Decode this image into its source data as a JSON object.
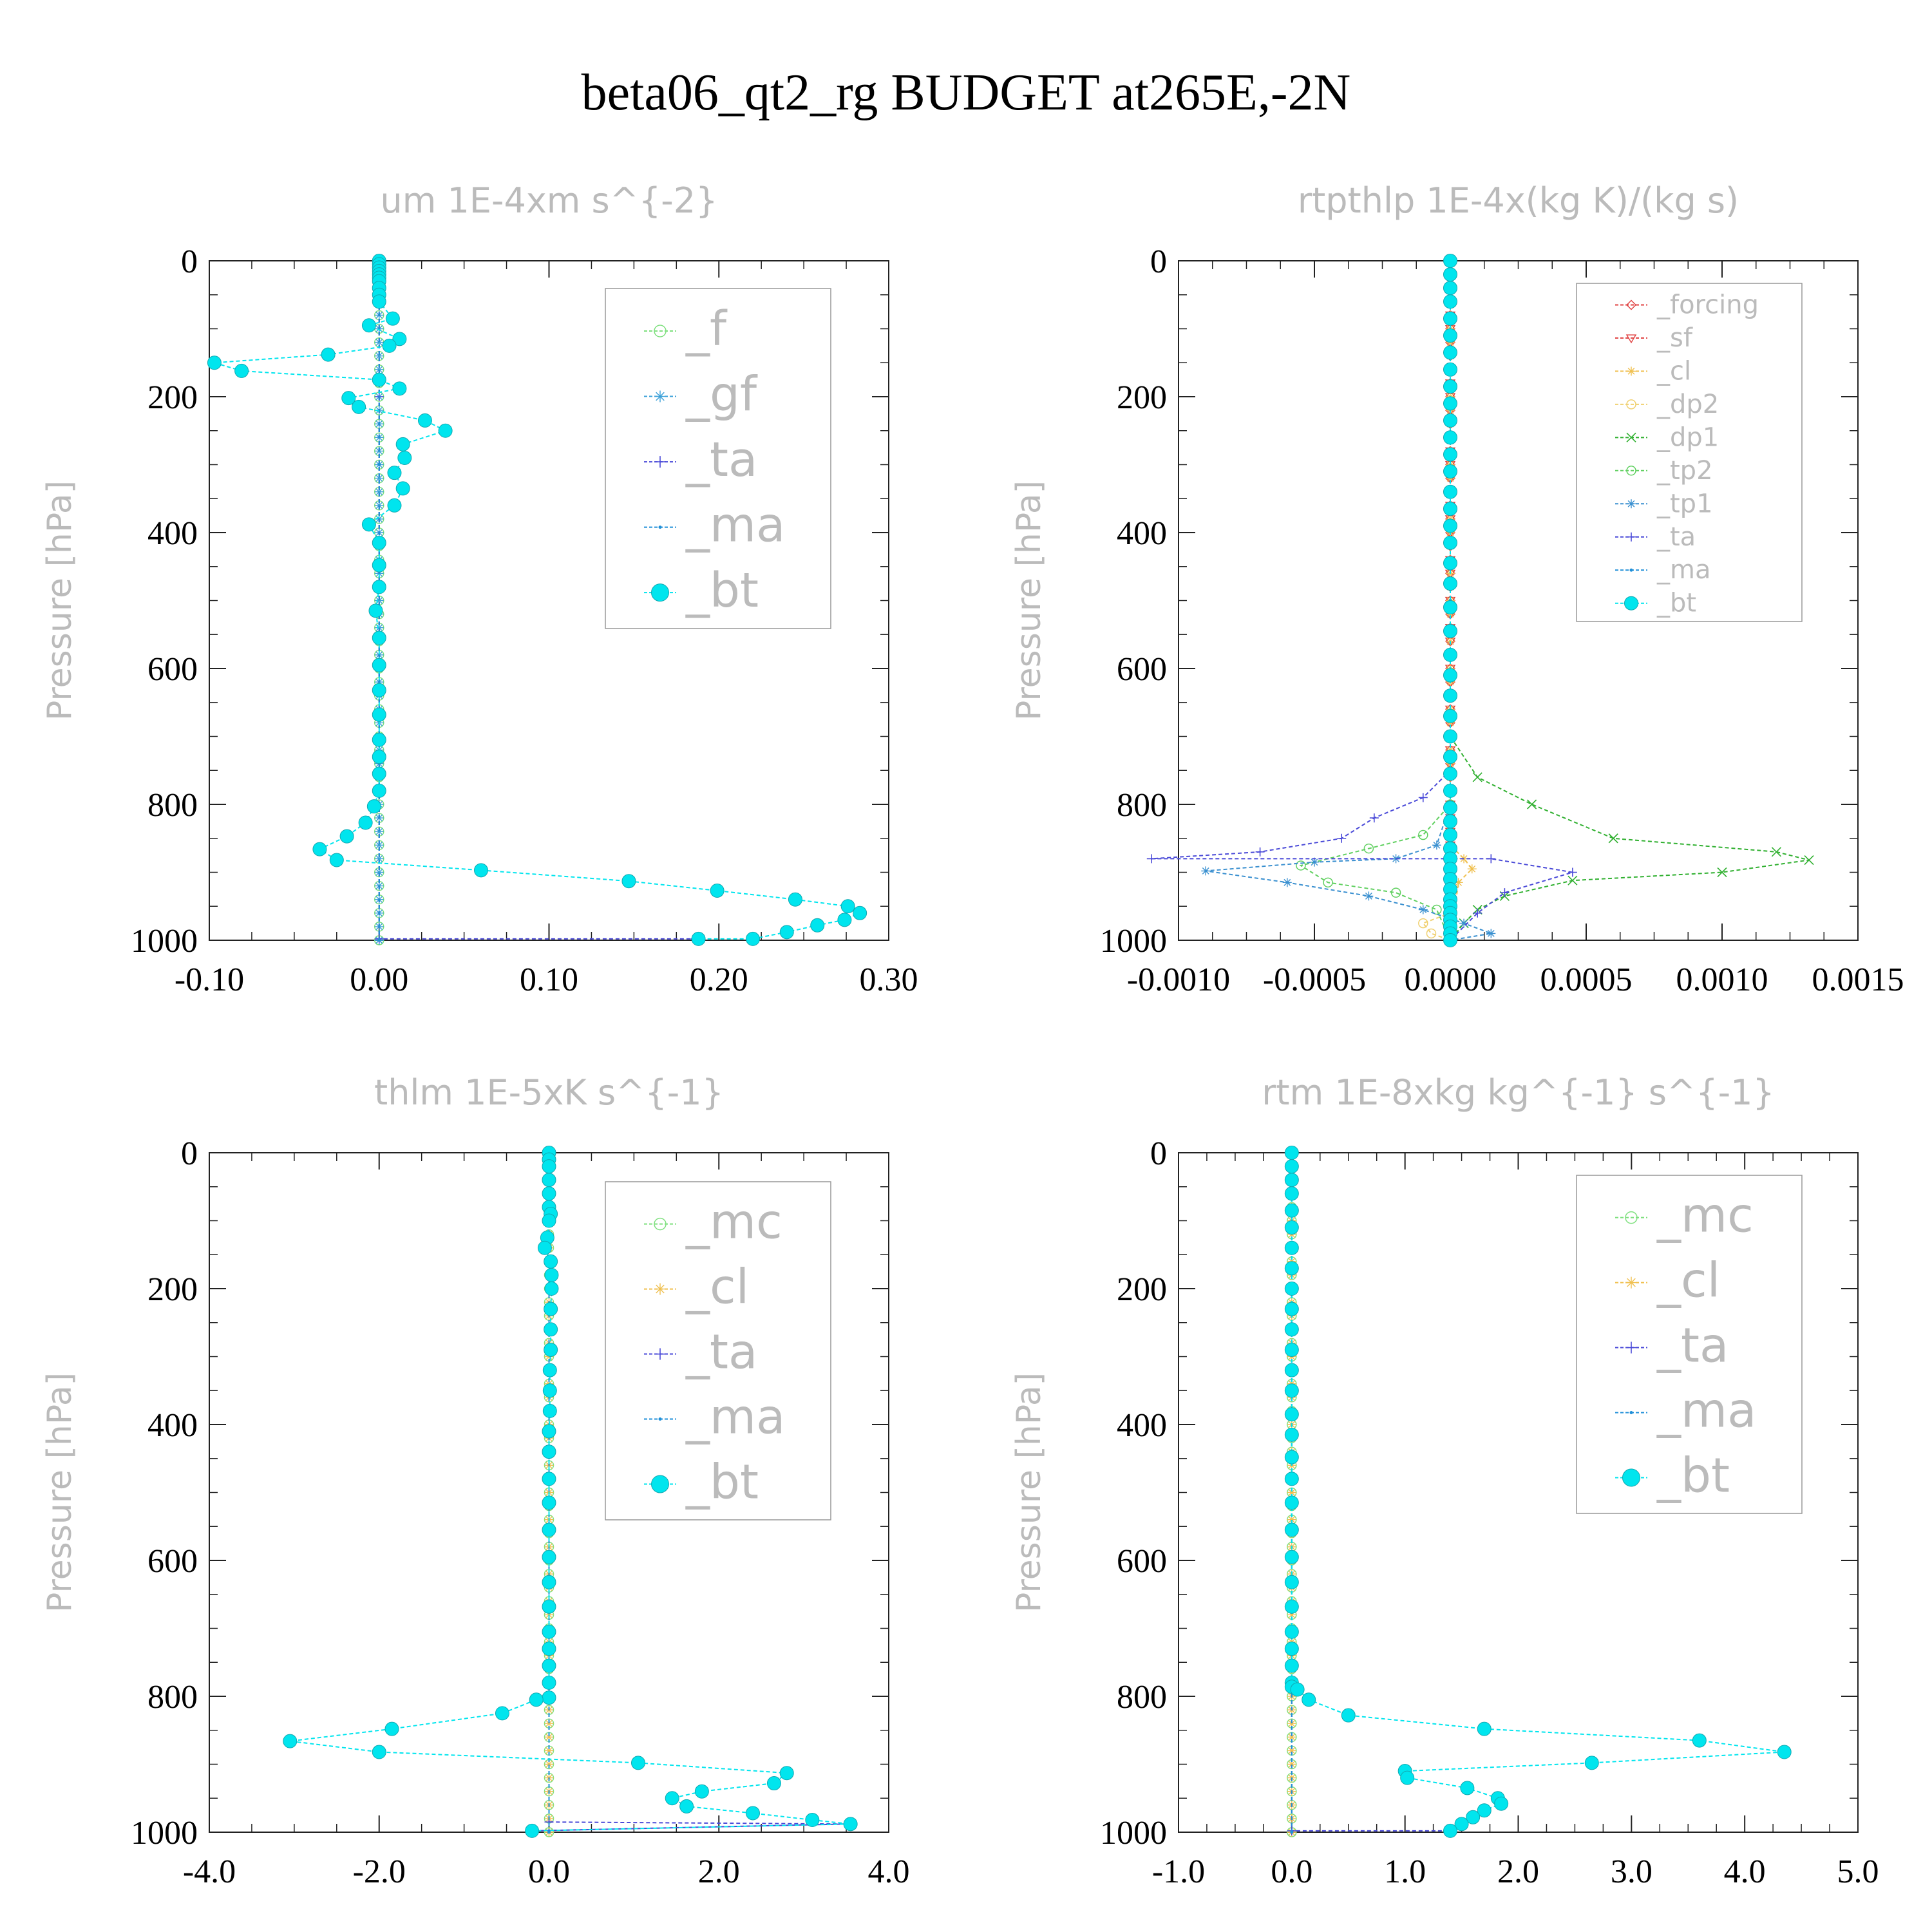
{
  "figure": {
    "title": "beta06_qt2_rg  BUDGET at265E,-2N"
  },
  "colors": {
    "grey_label": "#bbbbbb",
    "_f": "#7fe07f",
    "_gf": "#3aa0d8",
    "_ta": "#4a4ad8",
    "_ma": "#1f8fd8",
    "_bt": "#00e5ee",
    "_forcing": "#e04040",
    "_sf": "#e04040",
    "_cl": "#f0c050",
    "_dp2": "#f0d070",
    "_dp1": "#30b030",
    "_tp2": "#60d060",
    "_tp1": "#3a90d0",
    "_mc": "#7fe07f"
  },
  "chart_data": [
    {
      "type": "line",
      "title": "um  1E-4xm s^{-2}",
      "ylabel": "Pressure [hPa]",
      "ylim": [
        1000,
        0
      ],
      "xlim": [
        -0.1,
        0.3
      ],
      "xticks": [
        "-0.10",
        "0.00",
        "0.10",
        "0.20",
        "0.30"
      ],
      "yticks": [
        "0",
        "200",
        "400",
        "600",
        "800",
        "1000"
      ],
      "legend": [
        "_f",
        "_gf",
        "_ta",
        "_ma",
        "_bt"
      ],
      "series": [
        {
          "name": "_f",
          "x": [
            0,
            0
          ],
          "y": [
            0,
            1000
          ]
        },
        {
          "name": "_gf",
          "x": [
            0,
            0
          ],
          "y": [
            0,
            1000
          ]
        },
        {
          "name": "_ta",
          "x": [
            0,
            0,
            0,
            0,
            0.186
          ],
          "y": [
            0,
            200,
            600,
            998,
            998
          ]
        },
        {
          "name": "_ma",
          "x": [
            0,
            0,
            0,
            0
          ],
          "y": [
            0,
            300,
            600,
            1000
          ]
        },
        {
          "name": "_bt",
          "x": [
            0.0,
            0.0,
            0.0,
            0.0,
            0.0,
            0.0,
            0.0,
            0.0,
            0.0,
            0.0,
            0.008,
            -0.006,
            0.012,
            0.006,
            -0.03,
            -0.097,
            -0.081,
            0.0,
            0.012,
            -0.018,
            -0.012,
            0.027,
            0.039,
            0.014,
            0.015,
            0.009,
            0.014,
            0.009,
            -0.006,
            0.0,
            0.0,
            0.0,
            -0.002,
            0.0,
            0.0,
            0.0,
            0.0,
            0.0,
            0.0,
            0.0,
            0.0,
            -0.003,
            -0.008,
            -0.019,
            -0.035,
            -0.025,
            0.06,
            0.147,
            0.199,
            0.245,
            0.276,
            0.283,
            0.274,
            0.258,
            0.24,
            0.22,
            0.188
          ],
          "y": [
            0,
            5,
            10,
            15,
            20,
            25,
            30,
            40,
            50,
            60,
            85,
            95,
            115,
            125,
            138,
            150,
            162,
            175,
            188,
            202,
            215,
            235,
            250,
            270,
            290,
            312,
            335,
            360,
            388,
            415,
            448,
            480,
            515,
            555,
            595,
            632,
            668,
            705,
            730,
            755,
            780,
            803,
            827,
            847,
            866,
            882,
            897,
            913,
            927,
            940,
            950,
            960,
            970,
            978,
            988,
            998,
            998
          ]
        }
      ]
    },
    {
      "type": "line",
      "title": "rtpthlp  1E-4x(kg K)/(kg s)",
      "ylabel": "Pressure [hPa]",
      "ylim": [
        1000,
        0
      ],
      "xlim": [
        -0.001,
        0.0015
      ],
      "xticks": [
        "-0.0010",
        "-0.0005",
        "0.0000",
        "0.0005",
        "0.0010",
        "0.0015"
      ],
      "yticks": [
        "0",
        "200",
        "400",
        "600",
        "800",
        "1000"
      ],
      "legend": [
        "_forcing",
        "_sf",
        "_cl",
        "_dp2",
        "_dp1",
        "_tp2",
        "_tp1",
        "_ta",
        "_ma",
        "_bt"
      ],
      "series": [
        {
          "name": "_forcing",
          "x": [
            0,
            0
          ],
          "y": [
            0,
            1000
          ]
        },
        {
          "name": "_sf",
          "x": [
            0,
            0
          ],
          "y": [
            0,
            1000
          ]
        },
        {
          "name": "_cl",
          "x": [
            0,
            0,
            5e-05,
            8e-05,
            3e-05,
            0
          ],
          "y": [
            0,
            860,
            880,
            895,
            915,
            1000
          ]
        },
        {
          "name": "_dp2",
          "x": [
            0,
            0,
            -0.0001,
            -7e-05,
            0
          ],
          "y": [
            0,
            960,
            975,
            990,
            1000
          ]
        },
        {
          "name": "_dp1",
          "x": [
            0,
            0.0,
            0.0001,
            0.0003,
            0.0006,
            0.0012,
            0.00132,
            0.001,
            0.00045,
            0.0002,
            0.0001,
            5e-05,
            0
          ],
          "y": [
            0,
            700,
            760,
            800,
            850,
            870,
            882,
            900,
            912,
            935,
            955,
            975,
            1000
          ]
        },
        {
          "name": "_tp2",
          "x": [
            0,
            0,
            -0.0001,
            -0.0003,
            -0.00055,
            -0.00045,
            -0.0002,
            -5e-05,
            0
          ],
          "y": [
            0,
            800,
            845,
            865,
            890,
            915,
            930,
            955,
            1000
          ]
        },
        {
          "name": "_tp1",
          "x": [
            0,
            0,
            -5e-05,
            -0.0002,
            -0.0005,
            -0.0009,
            -0.0006,
            -0.0003,
            -0.0001,
            5e-05,
            0.00015,
            0
          ],
          "y": [
            0,
            800,
            860,
            880,
            885,
            898,
            915,
            935,
            955,
            975,
            990,
            1000
          ]
        },
        {
          "name": "_ta",
          "x": [
            0,
            0,
            -0.0001,
            -0.00028,
            -0.0004,
            -0.0007,
            -0.0011,
            0.00015,
            0.00045,
            0.0002,
            0.0001,
            0
          ],
          "y": [
            0,
            750,
            790,
            820,
            850,
            870,
            880,
            880,
            900,
            930,
            960,
            1000
          ]
        },
        {
          "name": "_ma",
          "x": [
            0,
            0,
            0
          ],
          "y": [
            0,
            500,
            1000
          ]
        },
        {
          "name": "_bt",
          "x": [
            0,
            0,
            0,
            0,
            0,
            0,
            0,
            0,
            0,
            0,
            0,
            0,
            0,
            0,
            0,
            0,
            0,
            0,
            0,
            0,
            0,
            0,
            0,
            0,
            0,
            0,
            0,
            0,
            0,
            0,
            0,
            0,
            0,
            0,
            0,
            0,
            0,
            0,
            0,
            0,
            0,
            0,
            0,
            0,
            0
          ],
          "y": [
            0,
            20,
            40,
            60,
            85,
            110,
            135,
            160,
            185,
            210,
            235,
            260,
            285,
            310,
            340,
            365,
            390,
            415,
            445,
            475,
            510,
            545,
            580,
            610,
            640,
            670,
            700,
            730,
            755,
            780,
            805,
            825,
            845,
            865,
            880,
            895,
            910,
            925,
            940,
            950,
            960,
            970,
            980,
            990,
            1000
          ]
        }
      ]
    },
    {
      "type": "line",
      "title": "thlm  1E-5xK s^{-1}",
      "ylabel": "Pressure [hPa]",
      "ylim": [
        1000,
        0
      ],
      "xlim": [
        -4.0,
        4.0
      ],
      "xticks": [
        "-4.0",
        "-2.0",
        "0.0",
        "2.0",
        "4.0"
      ],
      "yticks": [
        "0",
        "200",
        "400",
        "600",
        "800",
        "1000"
      ],
      "legend": [
        "_mc",
        "_cl",
        "_ta",
        "_ma",
        "_bt"
      ],
      "series": [
        {
          "name": "_mc",
          "x": [
            0,
            0
          ],
          "y": [
            0,
            1000
          ]
        },
        {
          "name": "_cl",
          "x": [
            0,
            0
          ],
          "y": [
            0,
            1000
          ]
        },
        {
          "name": "_ta",
          "x": [
            0,
            0,
            3.5,
            -0.2
          ],
          "y": [
            0,
            985,
            988,
            998
          ]
        },
        {
          "name": "_ma",
          "x": [
            0,
            0
          ],
          "y": [
            0,
            1000
          ]
        },
        {
          "name": "_bt",
          "x": [
            0.0,
            0.0,
            0.0,
            0.0,
            0.0,
            0.0,
            0.02,
            0.0,
            -0.02,
            -0.05,
            0.02,
            0.03,
            0.03,
            0.02,
            0.02,
            0.02,
            0.01,
            0.01,
            0.01,
            0.0,
            0.0,
            0.0,
            0.0,
            0.0,
            0.0,
            0.0,
            0.0,
            0.0,
            0.0,
            0.0,
            0.0,
            0.0,
            -0.15,
            -0.55,
            -1.85,
            -3.05,
            -2.0,
            1.05,
            2.8,
            2.65,
            1.8,
            1.45,
            1.62,
            2.4,
            3.1,
            3.55,
            -0.2
          ],
          "y": [
            0,
            10,
            20,
            40,
            60,
            80,
            90,
            100,
            125,
            140,
            160,
            180,
            200,
            230,
            260,
            290,
            320,
            350,
            380,
            410,
            440,
            480,
            515,
            555,
            595,
            632,
            668,
            705,
            730,
            755,
            780,
            802,
            805,
            825,
            848,
            866,
            882,
            898,
            913,
            928,
            940,
            950,
            962,
            972,
            982,
            988,
            998
          ]
        }
      ]
    },
    {
      "type": "line",
      "title": "rtm  1E-8xkg kg^{-1} s^{-1}",
      "ylabel": "Pressure [hPa]",
      "ylim": [
        1000,
        0
      ],
      "xlim": [
        -1.0,
        5.0
      ],
      "xticks": [
        "-1.0",
        "0.0",
        "1.0",
        "2.0",
        "3.0",
        "4.0",
        "5.0"
      ],
      "yticks": [
        "0",
        "200",
        "400",
        "600",
        "800",
        "1000"
      ],
      "legend": [
        "_mc",
        "_cl",
        "_ta",
        "_ma",
        "_bt"
      ],
      "series": [
        {
          "name": "_mc",
          "x": [
            0,
            0
          ],
          "y": [
            0,
            1000
          ]
        },
        {
          "name": "_cl",
          "x": [
            0,
            0
          ],
          "y": [
            0,
            1000
          ]
        },
        {
          "name": "_ta",
          "x": [
            0,
            0,
            1.4
          ],
          "y": [
            0,
            998,
            998
          ]
        },
        {
          "name": "_ma",
          "x": [
            0,
            0
          ],
          "y": [
            0,
            1000
          ]
        },
        {
          "name": "_bt",
          "x": [
            0.0,
            0.0,
            0.0,
            0.0,
            0.0,
            0.0,
            0.0,
            0.0,
            0.0,
            0.0,
            0.0,
            0.0,
            0.0,
            0.0,
            0.0,
            0.0,
            0.0,
            0.0,
            0.0,
            0.0,
            0.0,
            0.0,
            0.0,
            0.0,
            0.0,
            0.0,
            0.0,
            0.0,
            0.05,
            0.15,
            0.5,
            1.7,
            3.6,
            4.35,
            2.65,
            1.0,
            1.02,
            1.55,
            1.82,
            1.85,
            1.7,
            1.6,
            1.5,
            1.4
          ],
          "y": [
            0,
            20,
            40,
            60,
            85,
            110,
            140,
            170,
            200,
            230,
            260,
            290,
            320,
            350,
            385,
            415,
            448,
            480,
            515,
            555,
            595,
            632,
            668,
            705,
            730,
            755,
            780,
            786,
            790,
            805,
            828,
            848,
            865,
            882,
            898,
            910,
            920,
            935,
            950,
            958,
            968,
            978,
            988,
            998
          ]
        }
      ]
    }
  ]
}
